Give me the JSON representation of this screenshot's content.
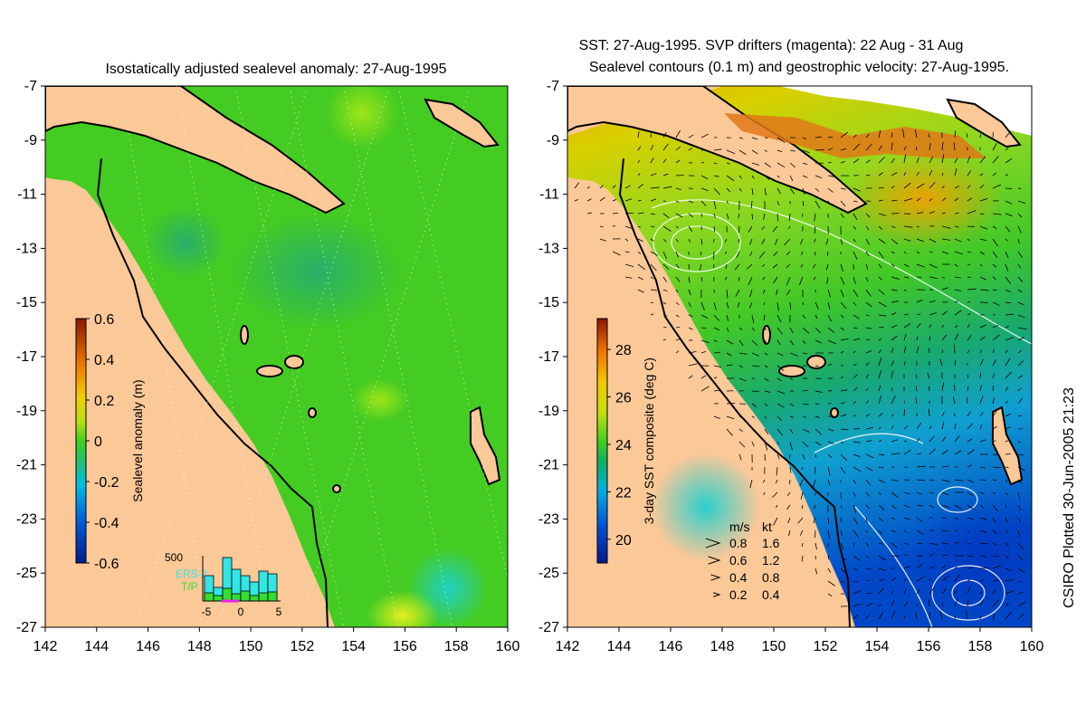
{
  "left_panel": {
    "title": "Isostatically adjusted sealevel anomaly: 27-Aug-1995",
    "colorbar": {
      "label": "Sealevel anomaly (m)",
      "ticks": [
        "0.6",
        "0.4",
        "0.2",
        "0",
        "-0.2",
        "-0.4",
        "-0.6"
      ],
      "range": [
        -0.6,
        0.6
      ]
    },
    "histogram": {
      "y_max_label": "500",
      "x_ticks": [
        "-5",
        "0",
        "5"
      ],
      "legend": [
        {
          "name": "ERS-2",
          "color": "#33e5e5"
        },
        {
          "name": "T/P",
          "color": "#33dd33"
        }
      ],
      "ers2": [
        280,
        150,
        480,
        350,
        280,
        210,
        330,
        300
      ],
      "tp": [
        90,
        60,
        140,
        80,
        110,
        60,
        90,
        100
      ]
    }
  },
  "right_panel": {
    "title_line1": "SST: 27-Aug-1995. SVP drifters (magenta): 22 Aug - 31 Aug",
    "title_line2": "Sealevel contours (0.1 m) and geostrophic velocity: 27-Aug-1995.",
    "colorbar": {
      "label": "3-day SST composite (deg C)",
      "ticks": [
        "28",
        "26",
        "24",
        "22",
        "20"
      ],
      "range": [
        19,
        29.3
      ]
    },
    "velocity_legend": {
      "header_ms": "m/s",
      "header_kt": "kt",
      "rows": [
        {
          "ms": "0.8",
          "kt": "1.6"
        },
        {
          "ms": "0.6",
          "kt": "1.2"
        },
        {
          "ms": "0.4",
          "kt": "0.8"
        },
        {
          "ms": "0.2",
          "kt": "0.4"
        }
      ]
    }
  },
  "axes": {
    "y_ticks": [
      "-7",
      "-9",
      "-11",
      "-13",
      "-15",
      "-17",
      "-19",
      "-21",
      "-23",
      "-25",
      "-27"
    ],
    "x_ticks": [
      "142",
      "144",
      "146",
      "148",
      "150",
      "152",
      "154",
      "156",
      "158",
      "160"
    ],
    "lon_range": [
      142,
      160
    ],
    "lat_range": [
      -27,
      -7
    ]
  },
  "credit": "CSIRO Plotted 30-Jun-2005 21:23",
  "colors": {
    "land": "#fbc898",
    "ocean_green": "#44cc22",
    "coast": "#000000"
  }
}
